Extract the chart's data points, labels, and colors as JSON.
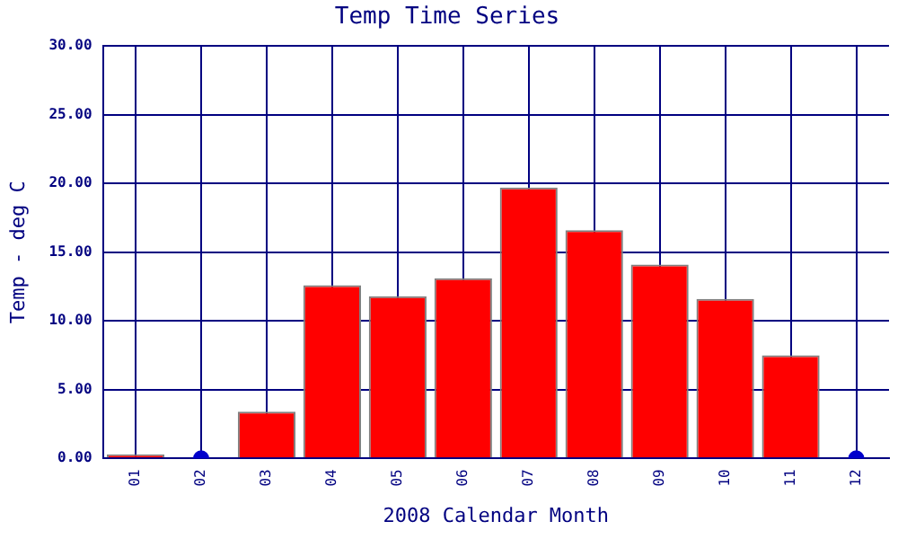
{
  "chart_data": {
    "type": "bar",
    "title": "Temp Time Series",
    "xlabel": "2008 Calendar Month",
    "ylabel": "Temp - deg C",
    "categories": [
      "01",
      "02",
      "03",
      "04",
      "05",
      "06",
      "07",
      "08",
      "09",
      "10",
      "11",
      "12"
    ],
    "series": [
      {
        "color": "#ff0000",
        "values": [
          0.3,
          null,
          3.4,
          12.6,
          11.8,
          13.1,
          19.7,
          16.6,
          14.1,
          11.6,
          7.5,
          null
        ]
      },
      {
        "type": "scatter",
        "color": "#0000cc",
        "x": [
          "02",
          "12"
        ],
        "values": [
          0,
          0
        ],
        "marker": "circle"
      }
    ],
    "ylim": [
      0,
      30
    ],
    "yticks": [
      {
        "value": 0,
        "label": "0.00"
      },
      {
        "value": 5,
        "label": "5.00"
      },
      {
        "value": 10,
        "label": "10.00"
      },
      {
        "value": 15,
        "label": "15.00"
      },
      {
        "value": 20,
        "label": "20.00"
      },
      {
        "value": 25,
        "label": "25.00"
      },
      {
        "value": 30,
        "label": "30.00"
      }
    ],
    "grid": true,
    "legend": false
  }
}
